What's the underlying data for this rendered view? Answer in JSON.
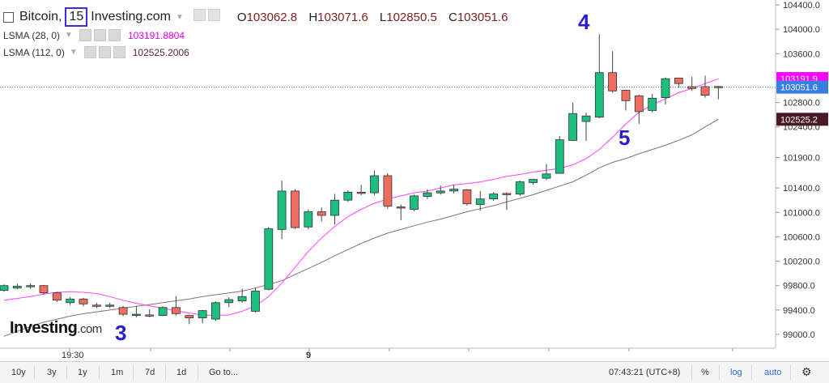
{
  "header": {
    "symbol": "Bitcoin,",
    "interval": "15",
    "source": "Investing.com",
    "open_label": "O",
    "open": "103062.8",
    "high_label": "H",
    "high": "103071.6",
    "low_label": "L",
    "low": "102850.5",
    "close_label": "C",
    "close": "103051.6"
  },
  "indicators": [
    {
      "name": "LSMA (28, 0)",
      "value": "103191.8804",
      "color": "#e400e4"
    },
    {
      "name": "LSMA (112, 0)",
      "value": "102525.2006",
      "color": "#5a2a2a"
    }
  ],
  "annotations": {
    "a3": "3",
    "a4": "4",
    "a5": "5"
  },
  "logo": {
    "main": "Investing",
    "suffix": ".com"
  },
  "toolbar": {
    "ranges": [
      "10y",
      "3y",
      "1y",
      "1m",
      "7d",
      "1d"
    ],
    "goto": "Go to...",
    "time": "07:43:21 (UTC+8)",
    "percent": "%",
    "log": "log",
    "auto": "auto"
  },
  "colors": {
    "up": "#1dbf7f",
    "down": "#ee6c60",
    "wick": "#444444",
    "lsma28": "#ff44ff",
    "lsma112": "#8a6f6f",
    "price_line": "#2a66d9"
  },
  "chart_data": {
    "type": "candlestick",
    "ylim": [
      98750,
      104500
    ],
    "y_ticks": [
      99000,
      99400,
      99800,
      100200,
      100600,
      101000,
      101400,
      101900,
      102400,
      102800,
      103600,
      104000,
      104400
    ],
    "x_tick_labels": [
      "19:30",
      "9"
    ],
    "price_tags": [
      {
        "label": "103191.9",
        "value": 103191.9,
        "bg": "#ff00ff",
        "fg": "#ffffff"
      },
      {
        "label": "103051.6",
        "value": 103051.6,
        "bg": "#3a7fe0",
        "fg": "#ffffff"
      },
      {
        "label": "102525.2",
        "value": 102525.2,
        "bg": "#4a1a22",
        "fg": "#ffffff"
      }
    ],
    "candles": [
      {
        "o": 99720,
        "c": 99800,
        "h": 99820,
        "l": 99700
      },
      {
        "o": 99760,
        "c": 99790,
        "h": 99830,
        "l": 99740
      },
      {
        "o": 99790,
        "c": 99800,
        "h": 99840,
        "l": 99750
      },
      {
        "o": 99800,
        "c": 99680,
        "h": 99810,
        "l": 99650
      },
      {
        "o": 99680,
        "c": 99560,
        "h": 99700,
        "l": 99530
      },
      {
        "o": 99520,
        "c": 99580,
        "h": 99610,
        "l": 99480
      },
      {
        "o": 99580,
        "c": 99500,
        "h": 99600,
        "l": 99460
      },
      {
        "o": 99480,
        "c": 99470,
        "h": 99520,
        "l": 99430
      },
      {
        "o": 99460,
        "c": 99480,
        "h": 99520,
        "l": 99430
      },
      {
        "o": 99440,
        "c": 99330,
        "h": 99470,
        "l": 99300
      },
      {
        "o": 99320,
        "c": 99330,
        "h": 99470,
        "l": 99280
      },
      {
        "o": 99320,
        "c": 99310,
        "h": 99410,
        "l": 99280
      },
      {
        "o": 99310,
        "c": 99440,
        "h": 99460,
        "l": 99300
      },
      {
        "o": 99440,
        "c": 99340,
        "h": 99630,
        "l": 99310
      },
      {
        "o": 99310,
        "c": 99270,
        "h": 99320,
        "l": 99170
      },
      {
        "o": 99270,
        "c": 99390,
        "h": 99400,
        "l": 99180
      },
      {
        "o": 99250,
        "c": 99520,
        "h": 99540,
        "l": 99220
      },
      {
        "o": 99520,
        "c": 99570,
        "h": 99610,
        "l": 99450
      },
      {
        "o": 99550,
        "c": 99620,
        "h": 99750,
        "l": 99520
      },
      {
        "o": 99380,
        "c": 99710,
        "h": 99760,
        "l": 99360
      },
      {
        "o": 99740,
        "c": 100730,
        "h": 100760,
        "l": 99720
      },
      {
        "o": 100720,
        "c": 101350,
        "h": 101520,
        "l": 100560
      },
      {
        "o": 101350,
        "c": 100750,
        "h": 101380,
        "l": 100730
      },
      {
        "o": 100760,
        "c": 101010,
        "h": 101050,
        "l": 100720
      },
      {
        "o": 101010,
        "c": 100950,
        "h": 101080,
        "l": 100850
      },
      {
        "o": 100950,
        "c": 101200,
        "h": 101300,
        "l": 100800
      },
      {
        "o": 101200,
        "c": 101330,
        "h": 101360,
        "l": 101170
      },
      {
        "o": 101330,
        "c": 101310,
        "h": 101450,
        "l": 101280
      },
      {
        "o": 101320,
        "c": 101600,
        "h": 101680,
        "l": 101280
      },
      {
        "o": 101600,
        "c": 101100,
        "h": 101640,
        "l": 101060
      },
      {
        "o": 101090,
        "c": 101080,
        "h": 101130,
        "l": 100870
      },
      {
        "o": 101050,
        "c": 101270,
        "h": 101290,
        "l": 101020
      },
      {
        "o": 101260,
        "c": 101320,
        "h": 101380,
        "l": 101220
      },
      {
        "o": 101320,
        "c": 101350,
        "h": 101440,
        "l": 101290
      },
      {
        "o": 101350,
        "c": 101380,
        "h": 101450,
        "l": 101310
      },
      {
        "o": 101370,
        "c": 101140,
        "h": 101380,
        "l": 101110
      },
      {
        "o": 101130,
        "c": 101220,
        "h": 101350,
        "l": 101030
      },
      {
        "o": 101220,
        "c": 101300,
        "h": 101330,
        "l": 101190
      },
      {
        "o": 101310,
        "c": 101300,
        "h": 101330,
        "l": 101040
      },
      {
        "o": 101300,
        "c": 101500,
        "h": 101520,
        "l": 101270
      },
      {
        "o": 101490,
        "c": 101540,
        "h": 101550,
        "l": 101450
      },
      {
        "o": 101560,
        "c": 101630,
        "h": 101790,
        "l": 101530
      },
      {
        "o": 101640,
        "c": 102190,
        "h": 102250,
        "l": 101640
      },
      {
        "o": 102180,
        "c": 102620,
        "h": 102800,
        "l": 102170
      },
      {
        "o": 102490,
        "c": 102580,
        "h": 102630,
        "l": 102170
      },
      {
        "o": 102560,
        "c": 103290,
        "h": 103920,
        "l": 102540
      },
      {
        "o": 103290,
        "c": 102990,
        "h": 103640,
        "l": 102960
      },
      {
        "o": 103000,
        "c": 102830,
        "h": 103010,
        "l": 102670
      },
      {
        "o": 102910,
        "c": 102650,
        "h": 102930,
        "l": 102450
      },
      {
        "o": 102670,
        "c": 102870,
        "h": 102940,
        "l": 102640
      },
      {
        "o": 102880,
        "c": 103190,
        "h": 103210,
        "l": 102770
      },
      {
        "o": 103200,
        "c": 103110,
        "h": 103210,
        "l": 103040
      },
      {
        "o": 103060,
        "c": 103030,
        "h": 103220,
        "l": 102990
      },
      {
        "o": 103060,
        "c": 102920,
        "h": 103240,
        "l": 102880
      },
      {
        "o": 103063,
        "c": 103052,
        "h": 103072,
        "l": 102851
      }
    ],
    "lsma28": [
      99560,
      99590,
      99620,
      99660,
      99690,
      99700,
      99690,
      99670,
      99620,
      99560,
      99510,
      99470,
      99430,
      99390,
      99350,
      99320,
      99310,
      99320,
      99380,
      99470,
      99620,
      99840,
      100100,
      100360,
      100580,
      100770,
      100930,
      101050,
      101150,
      101220,
      101270,
      101320,
      101350,
      101400,
      101450,
      101470,
      101500,
      101540,
      101590,
      101620,
      101660,
      101690,
      101720,
      101780,
      101880,
      102030,
      102230,
      102450,
      102640,
      102760,
      102860,
      102960,
      103030,
      103110,
      103190
    ],
    "lsma112": [
      98970,
      99050,
      99130,
      99200,
      99250,
      99300,
      99340,
      99370,
      99400,
      99430,
      99460,
      99490,
      99520,
      99550,
      99580,
      99620,
      99650,
      99680,
      99710,
      99760,
      99820,
      99880,
      99980,
      100080,
      100180,
      100290,
      100390,
      100490,
      100580,
      100660,
      100720,
      100780,
      100840,
      100890,
      100950,
      101010,
      101060,
      101110,
      101170,
      101230,
      101290,
      101360,
      101430,
      101500,
      101610,
      101730,
      101820,
      101880,
      101960,
      102030,
      102100,
      102180,
      102270,
      102400,
      102525
    ]
  }
}
